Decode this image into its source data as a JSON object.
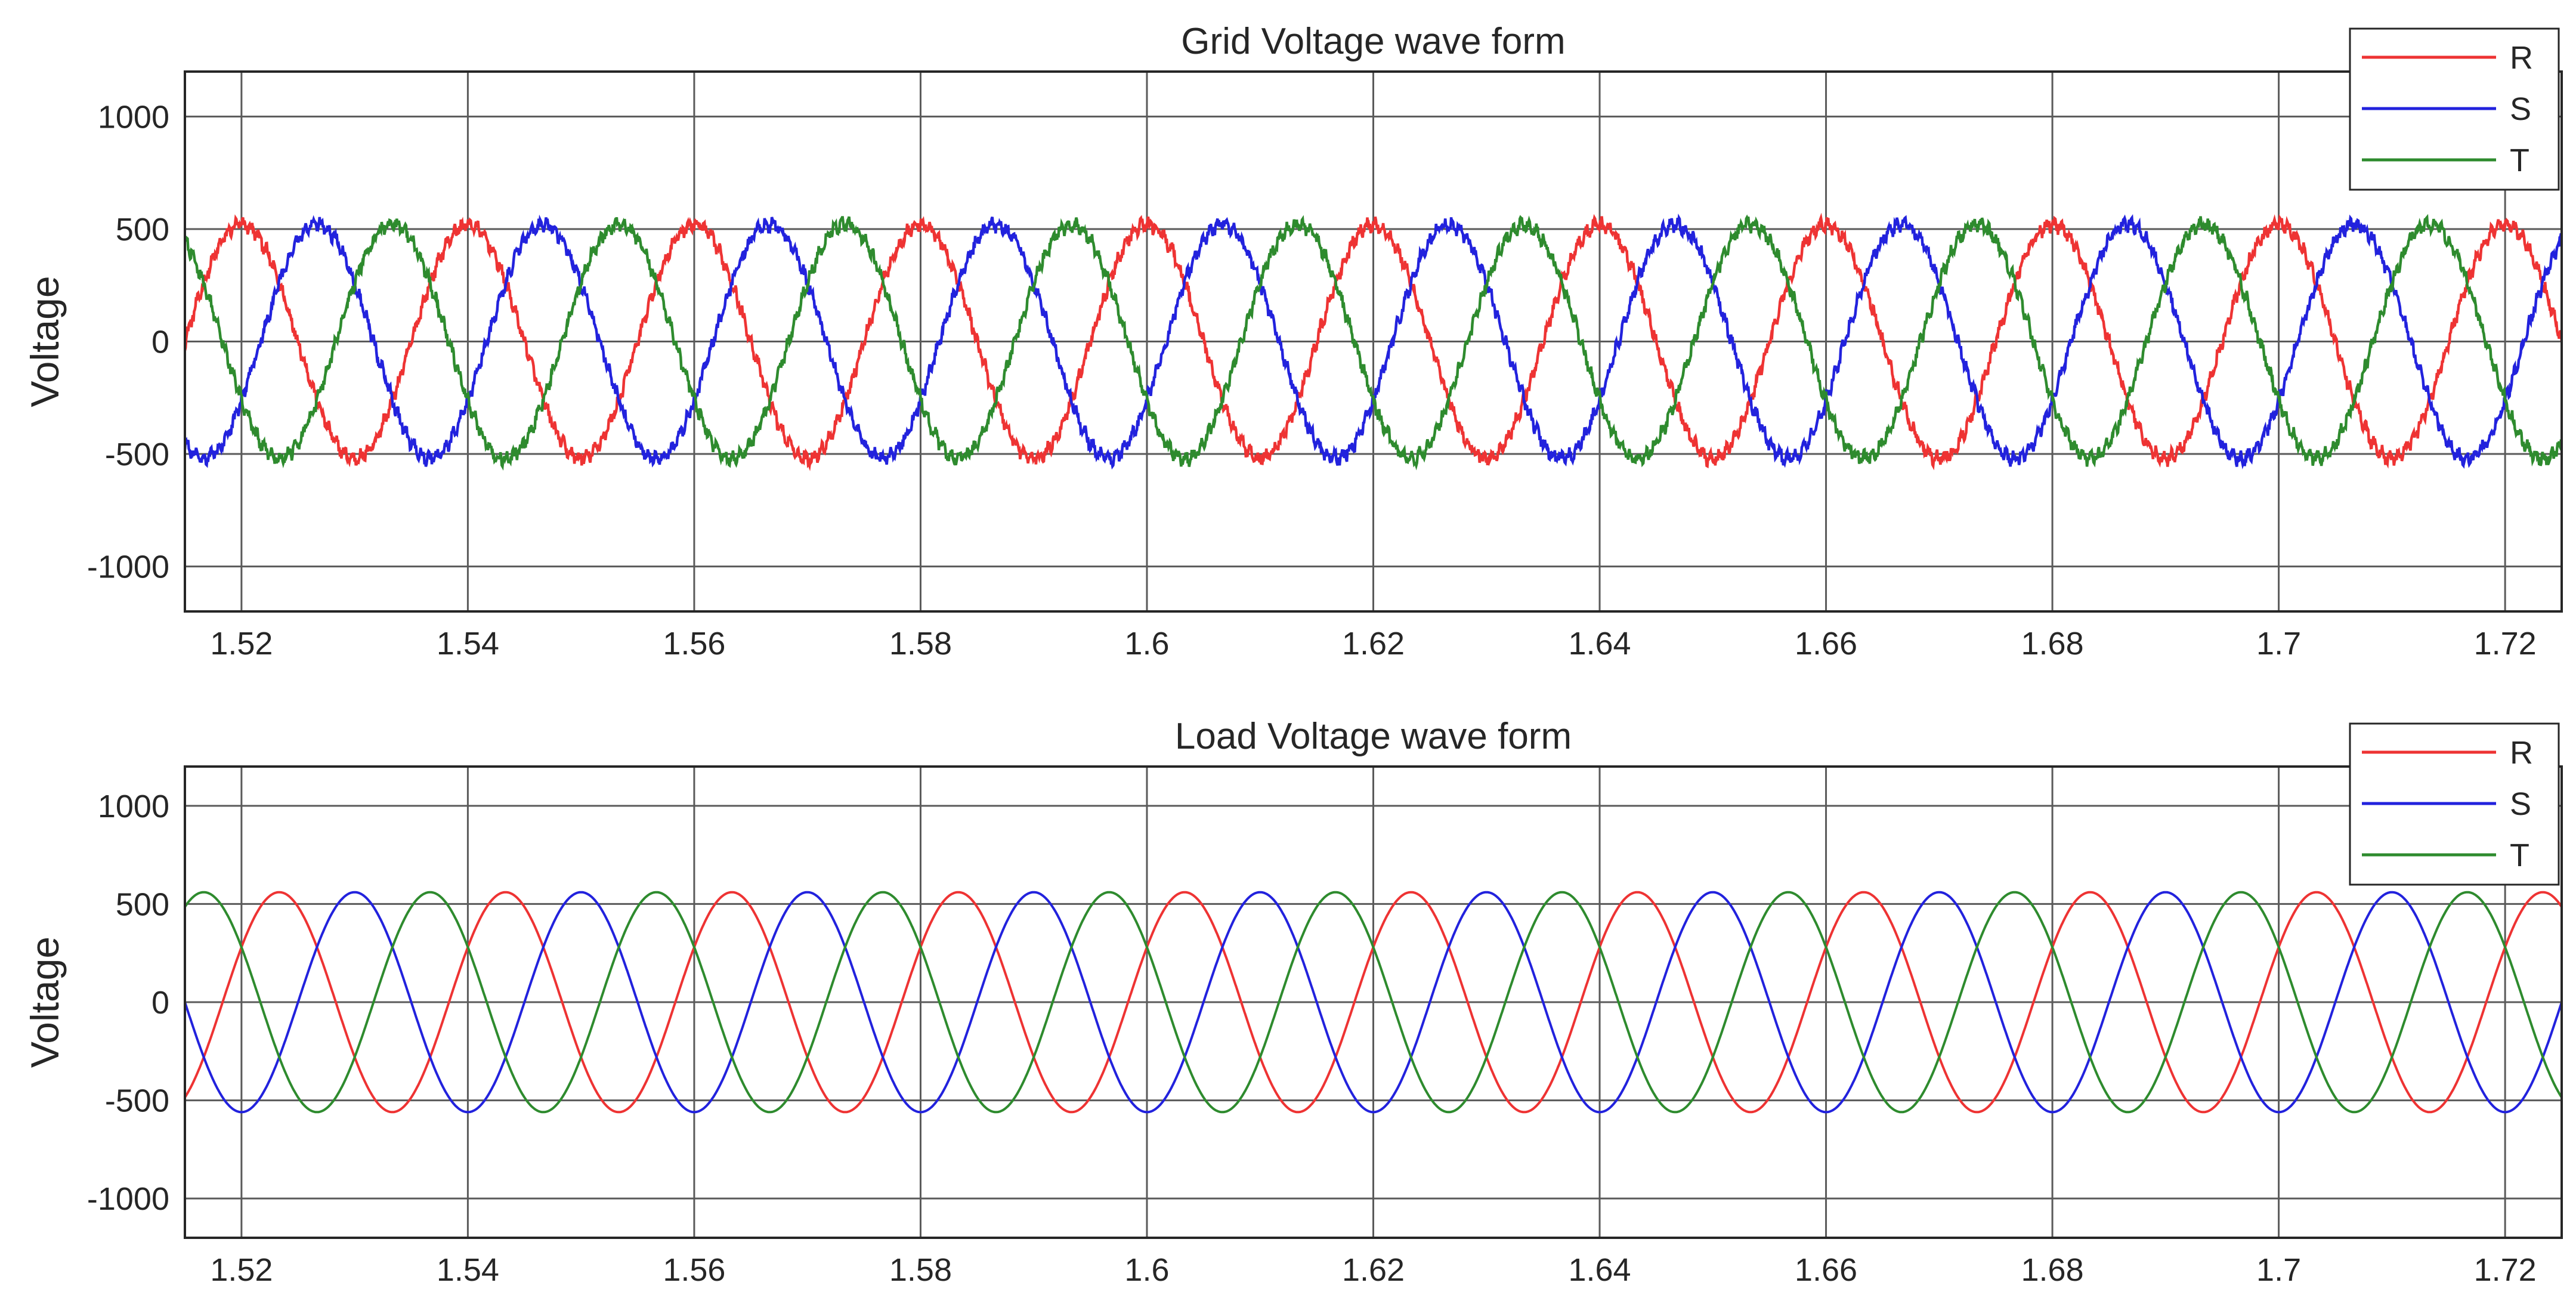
{
  "chart_data": [
    {
      "type": "line",
      "title": "Grid Voltage wave form",
      "xlabel": "",
      "ylabel": "Voltage",
      "xlim": [
        1.515,
        1.725
      ],
      "ylim": [
        -1200,
        1200
      ],
      "xticks": [
        "1.52",
        "1.54",
        "1.56",
        "1.58",
        "1.6",
        "1.62",
        "1.64",
        "1.66",
        "1.68",
        "1.7",
        "1.72"
      ],
      "yticks": [
        "-1000",
        "-500",
        "0",
        "500",
        "1000"
      ],
      "grid": true,
      "legend": "top-right",
      "frequency_hz": 50,
      "amplitude": 520,
      "noisy": true,
      "series": [
        {
          "name": "R",
          "color": "#ee3333",
          "phase_deg": 0
        },
        {
          "name": "S",
          "color": "#2222dd",
          "phase_deg": -120
        },
        {
          "name": "T",
          "color": "#2e8b2e",
          "phase_deg": 120
        }
      ]
    },
    {
      "type": "line",
      "title": "Load Voltage wave form",
      "xlabel": "",
      "ylabel": "Voltage",
      "xlim": [
        1.515,
        1.725
      ],
      "ylim": [
        -1200,
        1200
      ],
      "xticks": [
        "1.52",
        "1.54",
        "1.56",
        "1.58",
        "1.6",
        "1.62",
        "1.64",
        "1.66",
        "1.68",
        "1.7",
        "1.72"
      ],
      "yticks": [
        "-1000",
        "-500",
        "0",
        "500",
        "1000"
      ],
      "grid": true,
      "legend": "top-right",
      "frequency_hz": 50,
      "amplitude": 560,
      "noisy": false,
      "series": [
        {
          "name": "R",
          "color": "#ee3333",
          "phase_deg": -60
        },
        {
          "name": "S",
          "color": "#2222dd",
          "phase_deg": 180
        },
        {
          "name": "T",
          "color": "#2e8b2e",
          "phase_deg": 60
        }
      ]
    }
  ]
}
